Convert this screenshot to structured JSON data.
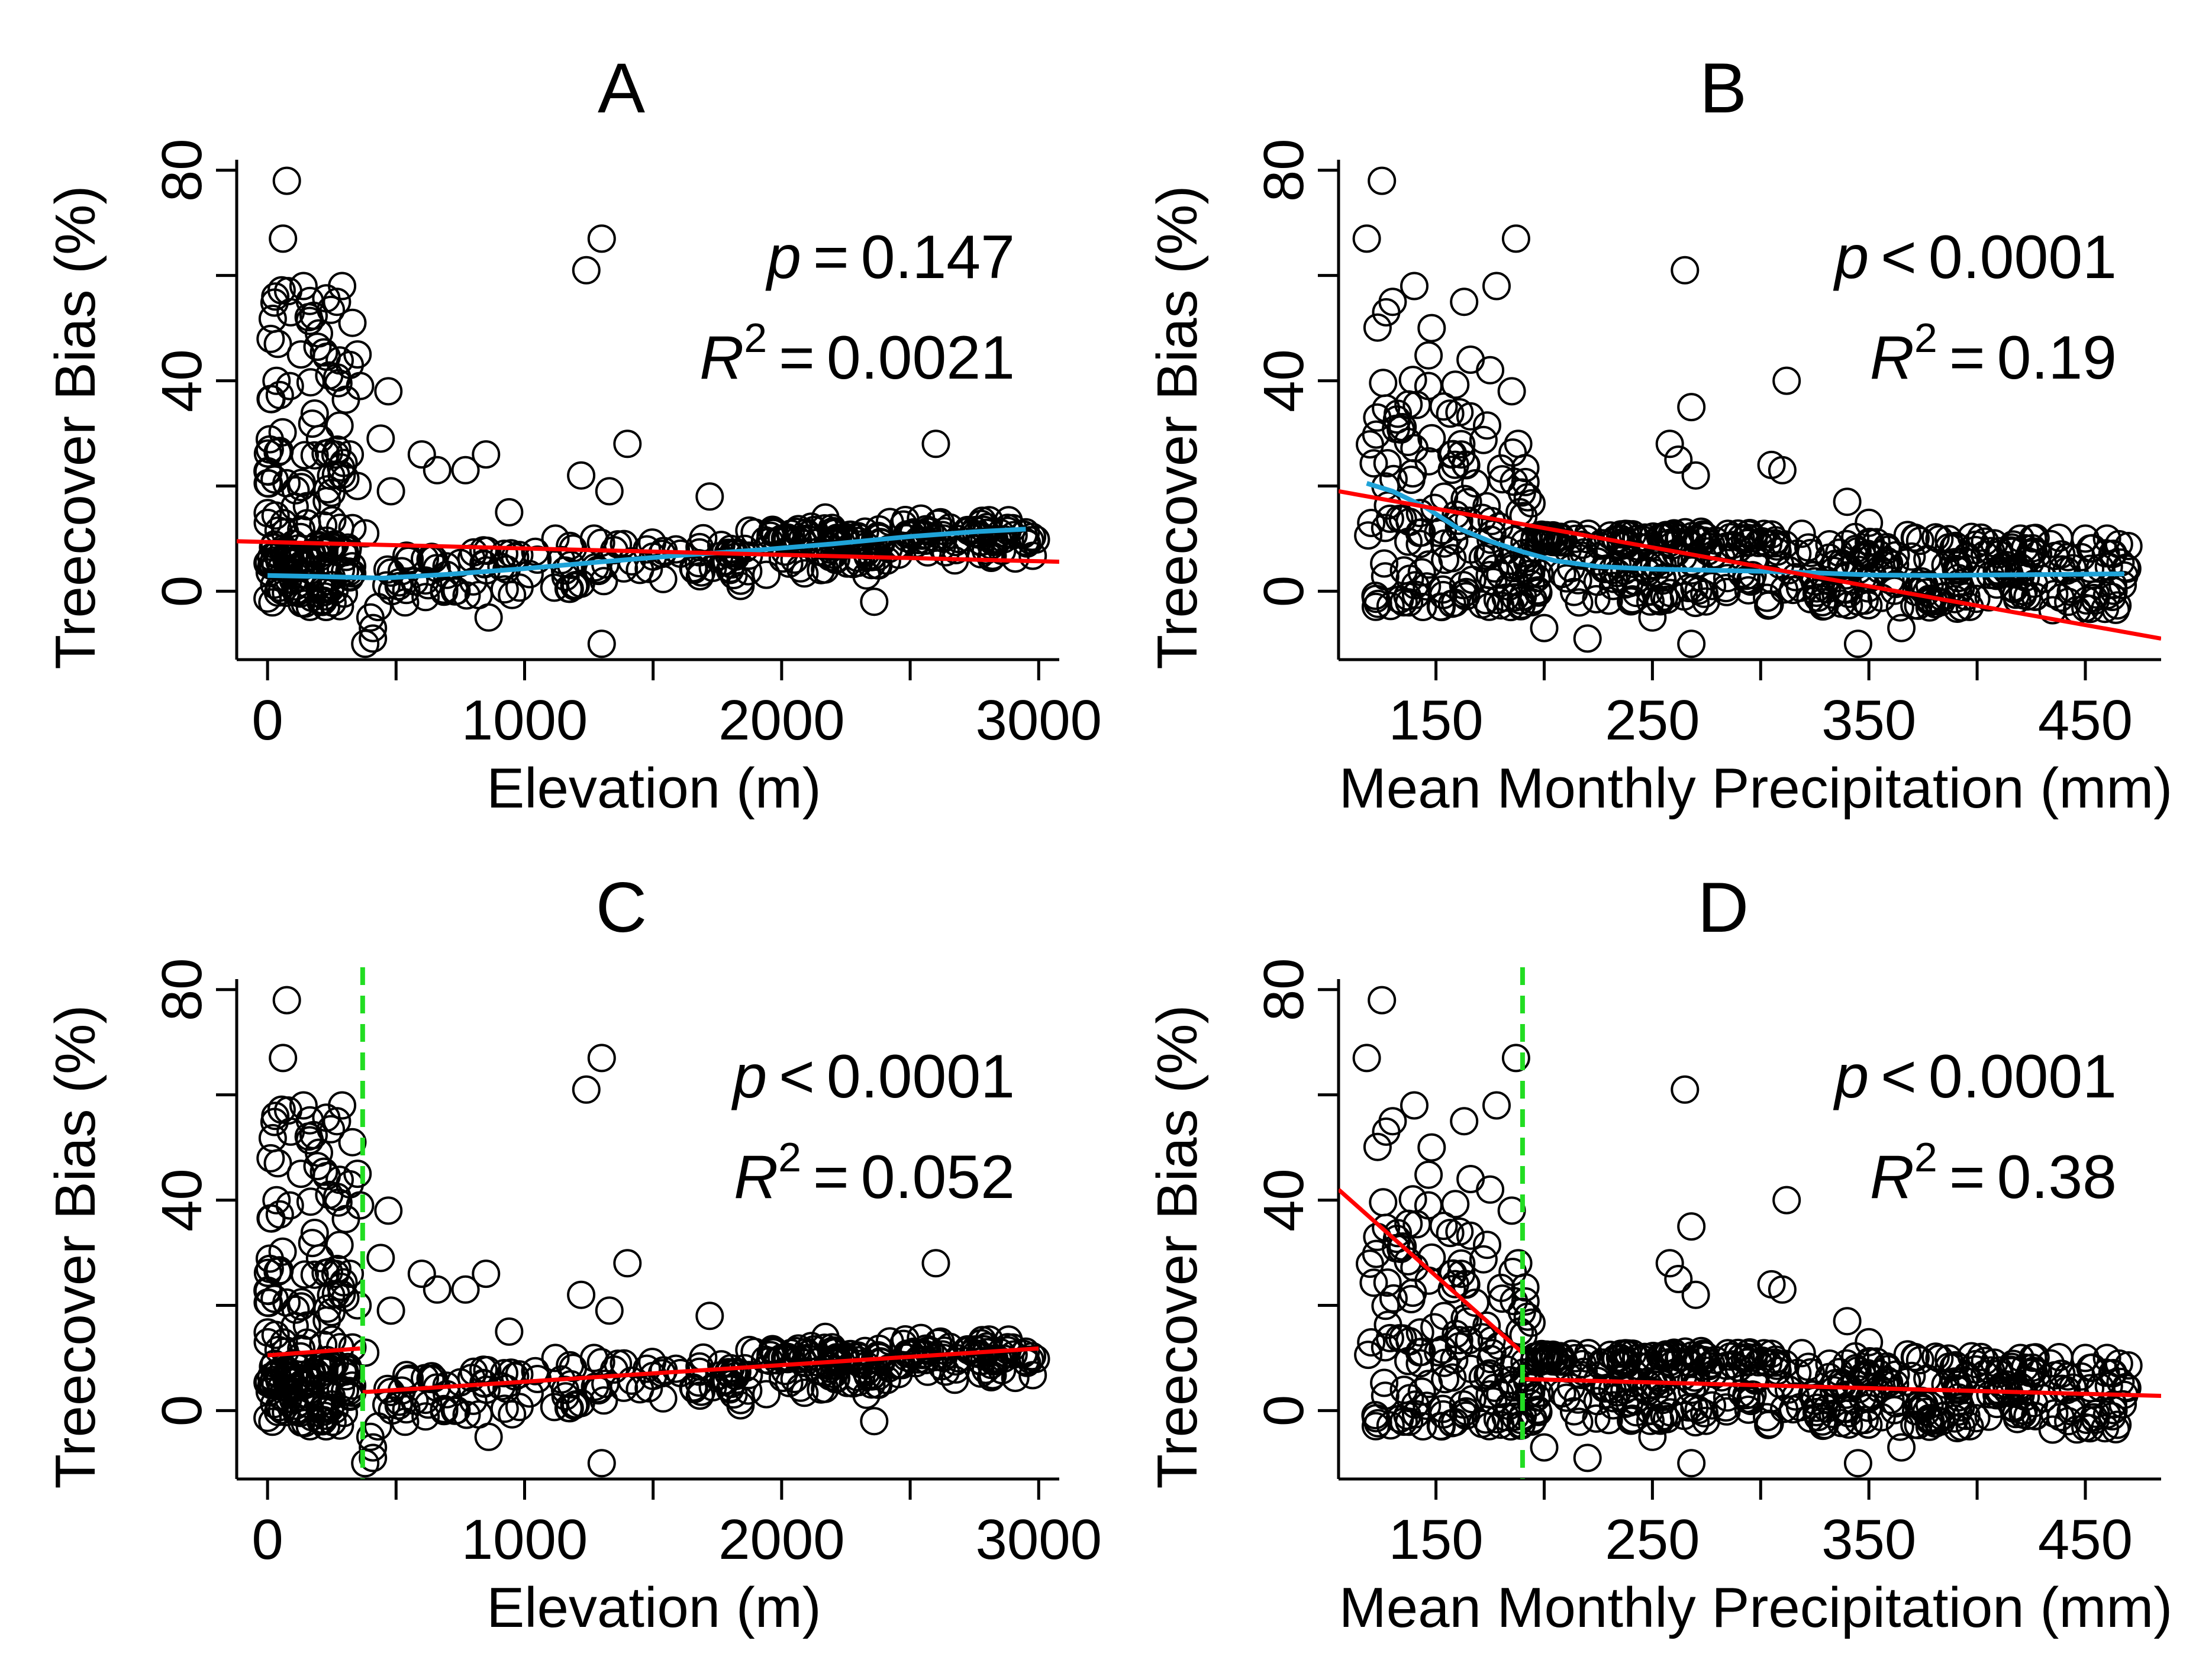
{
  "colors": {
    "points": "#000000",
    "linear_fit": "#ff0000",
    "loess": "#1fa3d8",
    "breakpoint": "#22dd22",
    "axis": "#000000"
  },
  "chart_data": [
    {
      "panel": "A",
      "type": "scatter",
      "title": "A",
      "xlabel": "Elevation (m)",
      "ylabel": "Treecover Bias (%)",
      "xlim": [
        -120,
        3080
      ],
      "ylim": [
        -13,
        82
      ],
      "xticks": [
        0,
        1000,
        2000,
        3000
      ],
      "yticks": [
        0,
        40,
        80
      ],
      "yminor": [
        20,
        60
      ],
      "xminor": [
        500,
        1500,
        2500
      ],
      "stats": {
        "p_sym": "p",
        "p_op": "=",
        "p_val": "0.147",
        "r_sym": "R",
        "r_sup": "2",
        "r_op": "=",
        "r_val": "0.0021"
      },
      "linear_fit": [
        [
          -120,
          9.5
        ],
        [
          3080,
          5.6
        ]
      ],
      "loess": [
        [
          0,
          3
        ],
        [
          200,
          2.8
        ],
        [
          450,
          2.5
        ],
        [
          700,
          3.2
        ],
        [
          1000,
          4.3
        ],
        [
          1300,
          5.6
        ],
        [
          1600,
          6.8
        ],
        [
          1900,
          7.8
        ],
        [
          2200,
          9
        ],
        [
          2500,
          10.4
        ],
        [
          2750,
          11.3
        ],
        [
          2950,
          11.8
        ]
      ],
      "breakpoint": null,
      "segments": []
    },
    {
      "panel": "B",
      "type": "scatter",
      "title": "B",
      "xlabel": "Mean Monthly Precipitation (mm)",
      "ylabel": "Treecover Bias (%)",
      "xlim": [
        105,
        485
      ],
      "ylim": [
        -13,
        82
      ],
      "xticks": [
        150,
        250,
        350,
        450
      ],
      "yticks": [
        0,
        40,
        80
      ],
      "yminor": [
        20,
        60
      ],
      "xminor": [
        200,
        300,
        400
      ],
      "stats": {
        "p_sym": "p",
        "p_op": "<",
        "p_val": "0.0001",
        "r_sym": "R",
        "r_sup": "2",
        "r_op": "=",
        "r_val": "0.19"
      },
      "linear_fit": [
        [
          105,
          19
        ],
        [
          485,
          -9
        ]
      ],
      "loess": [
        [
          118,
          20.5
        ],
        [
          130,
          19
        ],
        [
          145,
          16
        ],
        [
          160,
          12
        ],
        [
          175,
          9.5
        ],
        [
          190,
          7.5
        ],
        [
          205,
          5.8
        ],
        [
          225,
          4.7
        ],
        [
          250,
          4.2
        ],
        [
          275,
          4
        ],
        [
          300,
          3.8
        ],
        [
          325,
          3.5
        ],
        [
          350,
          3.1
        ],
        [
          380,
          3
        ],
        [
          410,
          3.1
        ],
        [
          440,
          3.2
        ],
        [
          468,
          3.3
        ]
      ],
      "breakpoint": null,
      "segments": []
    },
    {
      "panel": "C",
      "type": "scatter",
      "title": "C",
      "xlabel": "Elevation (m)",
      "ylabel": "Treecover Bias (%)",
      "xlim": [
        -120,
        3080
      ],
      "ylim": [
        -13,
        82
      ],
      "xticks": [
        0,
        1000,
        2000,
        3000
      ],
      "yticks": [
        0,
        40,
        80
      ],
      "yminor": [
        20,
        60
      ],
      "xminor": [
        500,
        1500,
        2500
      ],
      "stats": {
        "p_sym": "p",
        "p_op": "<",
        "p_val": "0.0001",
        "r_sym": "R",
        "r_sup": "2",
        "r_op": "=",
        "r_val": "0.052"
      },
      "linear_fit": null,
      "loess": null,
      "breakpoint": 370,
      "segments": [
        [
          [
            0,
            10.5
          ],
          [
            360,
            11.8
          ]
        ],
        [
          [
            370,
            3.5
          ],
          [
            3000,
            11.8
          ]
        ]
      ]
    },
    {
      "panel": "D",
      "type": "scatter",
      "title": "D",
      "xlabel": "Mean Monthly Precipitation (mm)",
      "ylabel": "Treecover Bias (%)",
      "xlim": [
        105,
        485
      ],
      "ylim": [
        -13,
        82
      ],
      "xticks": [
        150,
        250,
        350,
        450
      ],
      "yticks": [
        0,
        40,
        80
      ],
      "yminor": [
        20,
        60
      ],
      "xminor": [
        200,
        300,
        400
      ],
      "stats": {
        "p_sym": "p",
        "p_op": "<",
        "p_val": "0.0001",
        "r_sym": "R",
        "r_sup": "2",
        "r_op": "=",
        "r_val": "0.38"
      },
      "linear_fit": null,
      "loess": null,
      "breakpoint": 190,
      "segments": [
        [
          [
            105,
            42
          ],
          [
            190,
            11
          ]
        ],
        [
          [
            190,
            6
          ],
          [
            485,
            2.8
          ]
        ]
      ]
    }
  ]
}
